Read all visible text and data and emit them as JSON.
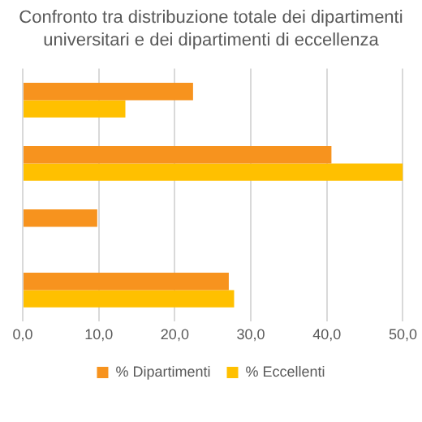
{
  "chart_data": {
    "type": "bar",
    "orientation": "horizontal",
    "title": "Confronto tra distribuzione totale dei dipartimenti universitari e dei dipartimenti di eccellenza",
    "categories": [
      null,
      null,
      null,
      null
    ],
    "series": [
      {
        "name": "% Dipartimenti",
        "color": "#f7931e",
        "values": [
          22.4,
          40.6,
          9.8,
          27.1
        ]
      },
      {
        "name": "% Eccellenti",
        "color": "#ffc000",
        "values": [
          13.5,
          50,
          null,
          27.8
        ]
      }
    ],
    "xlim": [
      0,
      50
    ],
    "xticks": [
      {
        "value": 0,
        "label": "0,0"
      },
      {
        "value": 10,
        "label": "10,0"
      },
      {
        "value": 20,
        "label": "20,0"
      },
      {
        "value": 30,
        "label": "30,0"
      },
      {
        "value": 40,
        "label": "40,0"
      },
      {
        "value": 50,
        "label": "50,0"
      }
    ],
    "grid": "x",
    "legend": "bottom"
  }
}
